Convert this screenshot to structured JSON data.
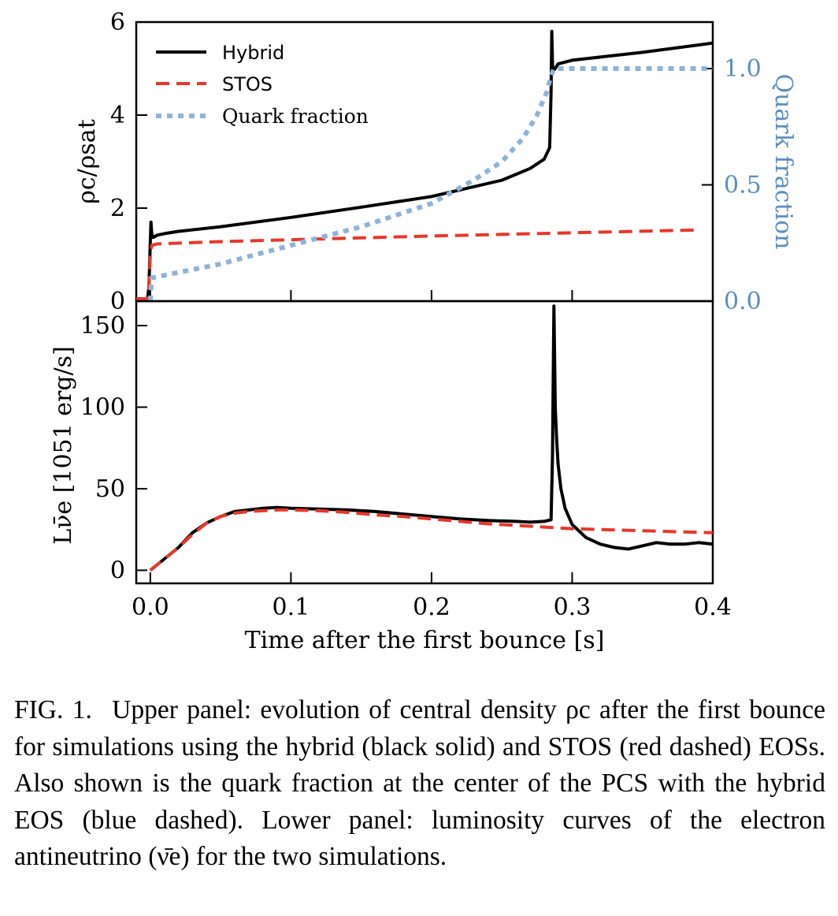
{
  "chart_data": [
    {
      "panel": "upper",
      "type": "line",
      "xlabel": "Time after the first bounce [s]",
      "ylabel": "ρc/ρsat",
      "ylabel_right": "Quark fraction",
      "xlim": [
        -0.01,
        0.4
      ],
      "ylim": [
        0,
        6
      ],
      "ylim_right": [
        0,
        1.2
      ],
      "xticks": [
        "0.0",
        "0.1",
        "0.2",
        "0.3",
        "0.4"
      ],
      "yticks": [
        "0",
        "2",
        "4",
        "6"
      ],
      "yticks_right": [
        "0.0",
        "0.5",
        "1.0"
      ],
      "legend_position": "upper-left",
      "series": [
        {
          "name": "Hybrid",
          "color": "#000000",
          "style": "solid",
          "axis": "left",
          "x": [
            -0.01,
            -0.002,
            -0.001,
            0.0,
            0.0005,
            0.001,
            0.002,
            0.005,
            0.01,
            0.02,
            0.05,
            0.1,
            0.15,
            0.2,
            0.25,
            0.27,
            0.28,
            0.284,
            0.285,
            0.2855,
            0.286,
            0.2865,
            0.288,
            0.29,
            0.3,
            0.35,
            0.4
          ],
          "y": [
            0.05,
            0.05,
            0.3,
            1.3,
            1.7,
            1.45,
            1.37,
            1.42,
            1.45,
            1.5,
            1.6,
            1.8,
            2.02,
            2.25,
            2.6,
            2.85,
            3.05,
            3.3,
            4.5,
            5.8,
            5.1,
            4.95,
            5.0,
            5.1,
            5.18,
            5.35,
            5.55
          ]
        },
        {
          "name": "STOS",
          "color": "#e8372a",
          "style": "dashed",
          "axis": "left",
          "x": [
            -0.01,
            -0.002,
            -0.001,
            0.0,
            0.001,
            0.005,
            0.05,
            0.1,
            0.2,
            0.3,
            0.39
          ],
          "y": [
            0.05,
            0.05,
            0.3,
            1.0,
            1.2,
            1.23,
            1.28,
            1.32,
            1.4,
            1.47,
            1.53
          ]
        },
        {
          "name": "Quark fraction",
          "color": "#8fb3d8",
          "style": "dotted",
          "axis": "right",
          "x": [
            0.0,
            0.001,
            0.05,
            0.1,
            0.15,
            0.2,
            0.23,
            0.25,
            0.265,
            0.275,
            0.282,
            0.285,
            0.287,
            0.3,
            0.35,
            0.4
          ],
          "y": [
            0.0,
            0.1,
            0.16,
            0.24,
            0.32,
            0.42,
            0.52,
            0.6,
            0.7,
            0.8,
            0.9,
            0.97,
            1.0,
            1.0,
            1.0,
            1.0
          ]
        }
      ]
    },
    {
      "panel": "lower",
      "type": "line",
      "xlabel": "Time after the first bounce [s]",
      "ylabel": "Lν̄e [1051 erg/s]",
      "xlim": [
        -0.01,
        0.4
      ],
      "ylim": [
        -8,
        165
      ],
      "xticks": [
        "0.0",
        "0.1",
        "0.2",
        "0.3",
        "0.4"
      ],
      "yticks": [
        "0",
        "50",
        "100",
        "150"
      ],
      "series": [
        {
          "name": "Hybrid",
          "color": "#000000",
          "style": "solid",
          "x": [
            0.0,
            0.01,
            0.02,
            0.03,
            0.04,
            0.05,
            0.06,
            0.07,
            0.08,
            0.09,
            0.1,
            0.12,
            0.14,
            0.16,
            0.18,
            0.2,
            0.22,
            0.24,
            0.26,
            0.27,
            0.28,
            0.285,
            0.286,
            0.287,
            0.288,
            0.289,
            0.29,
            0.292,
            0.295,
            0.3,
            0.31,
            0.32,
            0.33,
            0.34,
            0.35,
            0.36,
            0.37,
            0.38,
            0.39,
            0.4
          ],
          "y": [
            0,
            7,
            14,
            23,
            29,
            33,
            36,
            37,
            38,
            38.5,
            38,
            37.5,
            37,
            36,
            34.5,
            33,
            31.5,
            30.5,
            30,
            29.5,
            30,
            31,
            70,
            162,
            100,
            80,
            65,
            50,
            38,
            28,
            20,
            16,
            14,
            13,
            15,
            17,
            16,
            16,
            17,
            16
          ]
        },
        {
          "name": "STOS",
          "color": "#e8372a",
          "style": "dashed",
          "x": [
            0.0,
            0.01,
            0.02,
            0.03,
            0.04,
            0.05,
            0.06,
            0.07,
            0.08,
            0.09,
            0.1,
            0.12,
            0.14,
            0.16,
            0.18,
            0.2,
            0.22,
            0.24,
            0.26,
            0.28,
            0.3,
            0.32,
            0.34,
            0.36,
            0.38,
            0.4
          ],
          "y": [
            0,
            7,
            14,
            22,
            29,
            33,
            35,
            36,
            36.5,
            37,
            37,
            36.5,
            35.5,
            34,
            33,
            31.5,
            30,
            28.5,
            27.5,
            26.5,
            25.5,
            25,
            24.5,
            24,
            23.5,
            23
          ]
        }
      ]
    }
  ],
  "caption": {
    "fig_no": "FIG. 1.",
    "text": "Upper panel: evolution of central density ρc after the first bounce for simulations using the hybrid (black solid) and STOS (red dashed) EOSs. Also shown is the quark fraction at the center of the PCS with the hybrid EOS (blue dashed). Lower panel: luminosity curves of the electron antineutrino (ν̄e) for the two simulations."
  }
}
